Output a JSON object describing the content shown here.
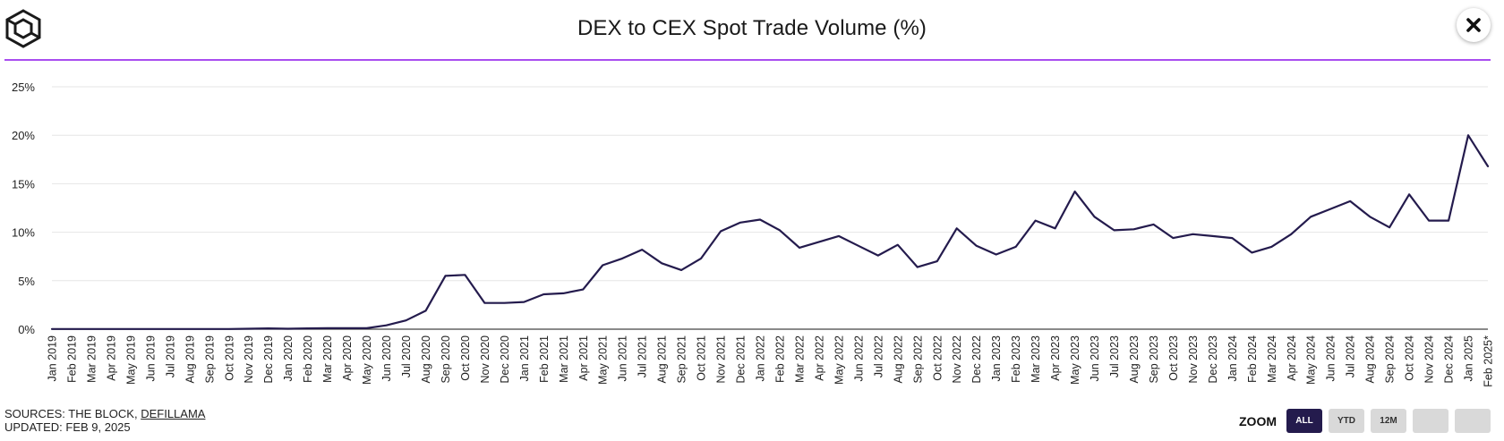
{
  "header": {
    "title": "DEX to CEX Spot Trade Volume (%)",
    "close_label": "✕"
  },
  "footer": {
    "sources_prefix": "SOURCES: THE BLOCK,",
    "sources_link": "DEFILLAMA",
    "updated": "UPDATED: FEB 9, 2025"
  },
  "zoom": {
    "label": "ZOOM",
    "buttons": [
      "ALL",
      "YTD",
      "12M",
      "",
      ""
    ],
    "active": "ALL"
  },
  "colors": {
    "line": "#241b4d",
    "accent": "#a94df0",
    "grid": "#e6e6e6",
    "axis": "#444444"
  },
  "chart_data": {
    "type": "line",
    "title": "DEX to CEX Spot Trade Volume (%)",
    "xlabel": "",
    "ylabel": "",
    "ylim": [
      0,
      25
    ],
    "yticks": [
      0,
      5,
      10,
      15,
      20,
      25
    ],
    "ytick_labels": [
      "0%",
      "5%",
      "10%",
      "15%",
      "20%",
      "25%"
    ],
    "grid": true,
    "categories": [
      "Jan 2019",
      "Feb 2019",
      "Mar 2019",
      "Apr 2019",
      "May 2019",
      "Jun 2019",
      "Jul 2019",
      "Aug 2019",
      "Sep 2019",
      "Oct 2019",
      "Nov 2019",
      "Dec 2019",
      "Jan 2020",
      "Feb 2020",
      "Mar 2020",
      "Apr 2020",
      "May 2020",
      "Jun 2020",
      "Jul 2020",
      "Aug 2020",
      "Sep 2020",
      "Oct 2020",
      "Nov 2020",
      "Dec 2020",
      "Jan 2021",
      "Feb 2021",
      "Mar 2021",
      "Apr 2021",
      "May 2021",
      "Jun 2021",
      "Jul 2021",
      "Aug 2021",
      "Sep 2021",
      "Oct 2021",
      "Nov 2021",
      "Dec 2021",
      "Jan 2022",
      "Feb 2022",
      "Mar 2022",
      "Apr 2022",
      "May 2022",
      "Jun 2022",
      "Jul 2022",
      "Aug 2022",
      "Sep 2022",
      "Oct 2022",
      "Nov 2022",
      "Dec 2022",
      "Jan 2023",
      "Feb 2023",
      "Mar 2023",
      "Apr 2023",
      "May 2023",
      "Jun 2023",
      "Jul 2023",
      "Aug 2023",
      "Sep 2023",
      "Oct 2023",
      "Nov 2023",
      "Dec 2023",
      "Jan 2024",
      "Feb 2024",
      "Mar 2024",
      "Apr 2024",
      "May 2024",
      "Jun 2024",
      "Jul 2024",
      "Aug 2024",
      "Sep 2024",
      "Oct 2024",
      "Nov 2024",
      "Dec 2024",
      "Jan 2025",
      "Feb 2025*"
    ],
    "series": [
      {
        "name": "DEX to CEX Spot Trade Volume (%)",
        "values": [
          0.02,
          0.02,
          0.02,
          0.02,
          0.02,
          0.02,
          0.02,
          0.02,
          0.02,
          0.02,
          0.05,
          0.08,
          0.05,
          0.08,
          0.1,
          0.1,
          0.1,
          0.4,
          0.9,
          1.9,
          5.5,
          5.6,
          2.7,
          2.7,
          2.8,
          3.6,
          3.7,
          4.1,
          6.6,
          7.3,
          8.2,
          6.8,
          6.1,
          7.3,
          10.1,
          11.0,
          11.3,
          10.2,
          8.4,
          9.0,
          9.6,
          8.6,
          7.6,
          8.7,
          6.4,
          7.0,
          10.4,
          8.6,
          7.7,
          8.5,
          11.2,
          10.4,
          14.2,
          11.6,
          10.2,
          10.3,
          10.8,
          9.4,
          9.8,
          9.6,
          9.4,
          7.9,
          8.5,
          9.8,
          11.6,
          12.4,
          13.2,
          11.6,
          10.5,
          13.9,
          11.2,
          11.2,
          20.0,
          16.8
        ]
      }
    ]
  }
}
